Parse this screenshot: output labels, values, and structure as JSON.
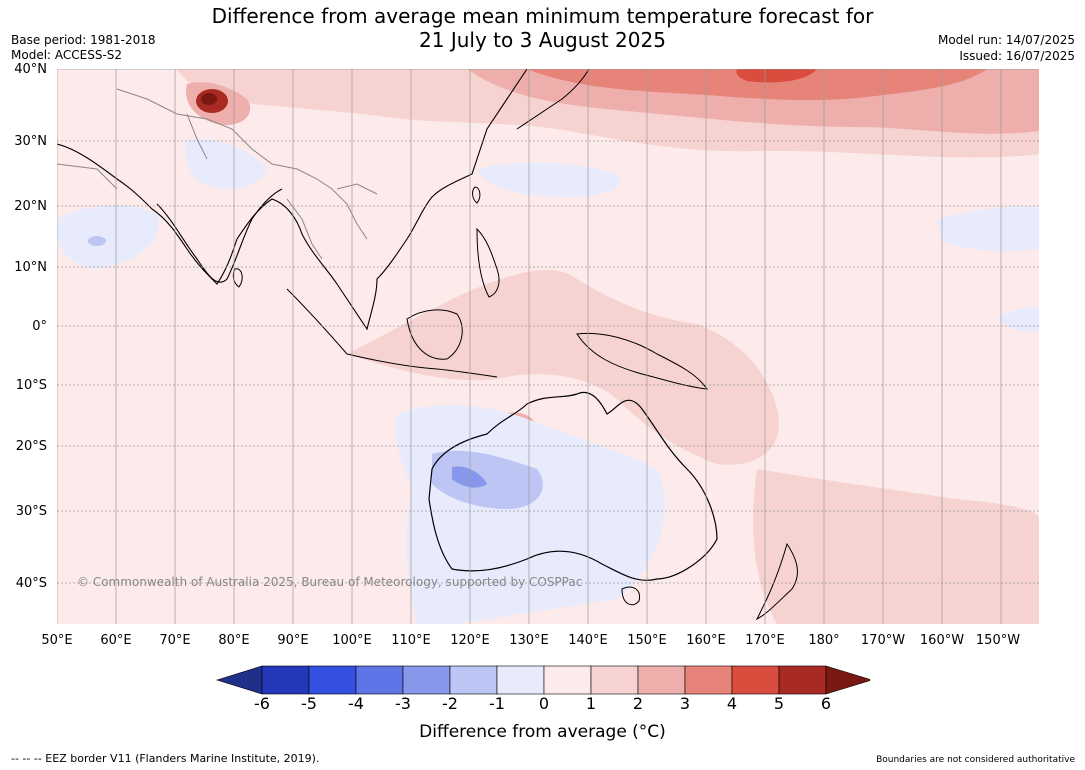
{
  "title_line1": "Difference from average mean minimum temperature forecast for",
  "title_line2": "21 July to 3 August 2025",
  "base_period": "Base period: 1981-2018",
  "model": "Model: ACCESS-S2",
  "model_run": "Model run: 14/07/2025",
  "issued": "Issued: 16/07/2025",
  "map": {
    "lat_labels": [
      "40°N",
      "30°N",
      "20°N",
      "10°N",
      "0°",
      "10°S",
      "20°S",
      "30°S",
      "40°S"
    ],
    "lon_labels": [
      "50°E",
      "60°E",
      "70°E",
      "80°E",
      "90°E",
      "100°E",
      "110°E",
      "120°E",
      "130°E",
      "140°E",
      "150°E",
      "160°E",
      "170°E",
      "180°",
      "170°W",
      "160°W",
      "150°W"
    ],
    "copyright": "© Commonwealth of Australia 2025, Bureau of Meteorology, supported by COSPPac",
    "palette": {
      "m6": "#1f2f8a",
      "m5": "#2338b8",
      "m4": "#3350e0",
      "m3": "#5c74e6",
      "m2": "#8797ec",
      "m1": "#bcc5f4",
      "m0": "#e8ebfc",
      "p0": "#fdeaea",
      "p1": "#f6d2d0",
      "p2": "#eeaeab",
      "p3": "#e78479",
      "p4": "#d94c3e",
      "p5": "#a82a22",
      "p6": "#7a1812"
    }
  },
  "legend": {
    "ticks": [
      "-6",
      "-5",
      "-4",
      "-3",
      "-2",
      "-1",
      "0",
      "1",
      "2",
      "3",
      "4",
      "5",
      "6"
    ],
    "label": "Difference from average (°C)",
    "colors": [
      "#1f2f8a",
      "#2338b8",
      "#3350e0",
      "#5c74e6",
      "#8797ec",
      "#bcc5f4",
      "#e8ebfc",
      "#fdeaea",
      "#f6d2d0",
      "#eeaeab",
      "#e78479",
      "#d94c3e",
      "#a82a22",
      "#7a1812"
    ]
  },
  "footer": {
    "eez": "--  --  -- EEZ border V11 (Flanders Marine Institute, 2019).",
    "authoritative": "Boundaries are not considered authoritative"
  }
}
